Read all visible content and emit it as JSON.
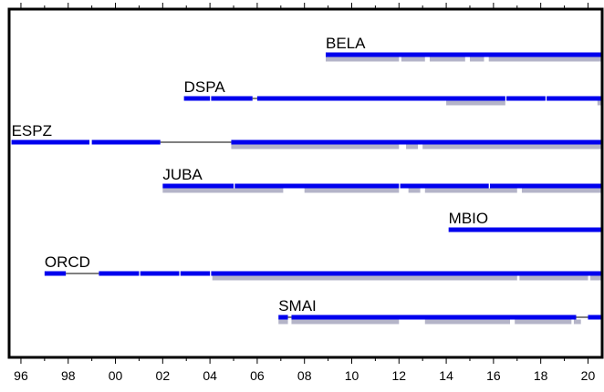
{
  "chart_data": {
    "type": "timeline",
    "title": "",
    "xlabel": "",
    "ylabel": "",
    "x_axis": {
      "range": [
        1995.5,
        2020.6
      ],
      "tick_labels": [
        "96",
        "98",
        "00",
        "02",
        "04",
        "06",
        "08",
        "10",
        "12",
        "14",
        "16",
        "18",
        "20"
      ],
      "tick_values": [
        1996,
        1998,
        2000,
        2002,
        2004,
        2006,
        2008,
        2010,
        2012,
        2014,
        2016,
        2018,
        2020
      ]
    },
    "colors": {
      "primary": "#0000ee",
      "secondary": "#b4b4c8",
      "gap_line": "#000000"
    },
    "stations": [
      {
        "name": "BELA",
        "primary": [
          [
            2008.9,
            2020.6
          ]
        ],
        "secondary": [
          [
            2008.9,
            2012.0
          ],
          [
            2012.1,
            2013.1
          ],
          [
            2013.3,
            2014.8
          ],
          [
            2015.0,
            2015.6
          ],
          [
            2015.8,
            2020.6
          ]
        ],
        "gap_lines": []
      },
      {
        "name": "DSPA",
        "primary": [
          [
            2002.9,
            2004.0
          ],
          [
            2004.05,
            2005.8
          ],
          [
            2006.0,
            2016.5
          ],
          [
            2016.55,
            2018.2
          ],
          [
            2018.25,
            2020.6
          ]
        ],
        "secondary": [
          [
            2014.0,
            2016.5
          ],
          [
            2020.4,
            2020.6
          ]
        ],
        "gap_lines": [
          [
            2005.8,
            2006.0
          ]
        ]
      },
      {
        "name": "ESPZ",
        "primary": [
          [
            1995.6,
            1998.9
          ],
          [
            1999.0,
            2001.9
          ],
          [
            2004.9,
            2020.6
          ]
        ],
        "secondary": [
          [
            2004.9,
            2012.0
          ],
          [
            2012.3,
            2012.8
          ],
          [
            2013.0,
            2020.6
          ]
        ],
        "gap_lines": [
          [
            2001.9,
            2004.9
          ]
        ]
      },
      {
        "name": "JUBA",
        "primary": [
          [
            2002.0,
            2005.0
          ],
          [
            2005.05,
            2012.0
          ],
          [
            2012.05,
            2015.8
          ],
          [
            2015.85,
            2020.6
          ]
        ],
        "secondary": [
          [
            2002.0,
            2007.1
          ],
          [
            2008.0,
            2012.0
          ],
          [
            2012.4,
            2012.9
          ],
          [
            2013.1,
            2017.0
          ],
          [
            2017.2,
            2020.6
          ]
        ],
        "gap_lines": []
      },
      {
        "name": "MBIO",
        "primary": [
          [
            2014.1,
            2020.6
          ]
        ],
        "secondary": [],
        "gap_lines": []
      },
      {
        "name": "ORCD",
        "primary": [
          [
            1997.0,
            1997.9
          ],
          [
            1999.3,
            2001.0
          ],
          [
            2001.05,
            2002.7
          ],
          [
            2002.75,
            2004.0
          ],
          [
            2004.05,
            2020.6
          ]
        ],
        "secondary": [
          [
            2004.1,
            2017.0
          ],
          [
            2017.1,
            2020.0
          ],
          [
            2020.1,
            2020.6
          ]
        ],
        "gap_lines": [
          [
            1997.9,
            1999.3
          ]
        ]
      },
      {
        "name": "SMAI",
        "primary": [
          [
            2006.9,
            2007.3
          ],
          [
            2007.45,
            2019.5
          ],
          [
            2020.0,
            2020.6
          ]
        ],
        "secondary": [
          [
            2006.9,
            2007.3
          ],
          [
            2007.45,
            2012.0
          ],
          [
            2013.1,
            2016.7
          ],
          [
            2016.9,
            2019.3
          ],
          [
            2019.4,
            2019.7
          ]
        ],
        "gap_lines": [
          [
            2007.3,
            2007.45
          ],
          [
            2019.5,
            2020.0
          ]
        ]
      }
    ]
  }
}
